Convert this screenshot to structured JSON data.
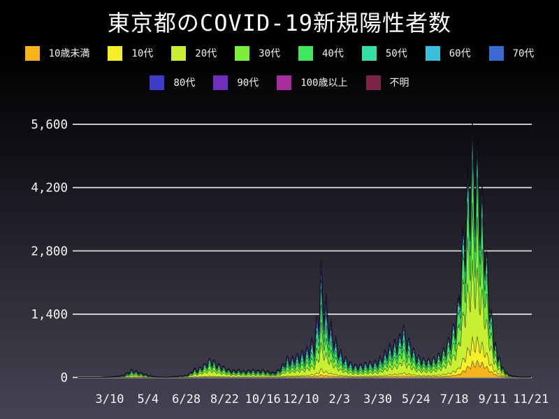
{
  "title": "東京都のCOVID-19新規陽性者数",
  "legend": {
    "rows": [
      [
        {
          "label": "10歳未満",
          "color": "#f7b41a"
        },
        {
          "label": "10代",
          "color": "#f7ef25"
        },
        {
          "label": "20代",
          "color": "#c9ef33"
        },
        {
          "label": "30代",
          "color": "#7bee3c"
        },
        {
          "label": "40代",
          "color": "#40e75c"
        },
        {
          "label": "50代",
          "color": "#35dfa5"
        },
        {
          "label": "60代",
          "color": "#39bedd"
        },
        {
          "label": "70代",
          "color": "#3a6bd2"
        }
      ],
      [
        {
          "label": "80代",
          "color": "#3e3bc6"
        },
        {
          "label": "90代",
          "color": "#6e2fbc"
        },
        {
          "label": "100歳以上",
          "color": "#a72d9e"
        },
        {
          "label": "不明",
          "color": "#7c2348"
        }
      ]
    ]
  },
  "chart_data": {
    "type": "area",
    "stacked": true,
    "title": "東京都のCOVID-19新規陽性者数",
    "xlabel": "",
    "ylabel": "",
    "grid": true,
    "legend_position": "top",
    "background_gradient": [
      "#000000",
      "#15131a",
      "#312e3a",
      "#474353"
    ],
    "grid_color": "#ededed",
    "text_color": "#f5f5f5",
    "ylim": [
      0,
      5950
    ],
    "y_ticks": [
      0,
      1400,
      2800,
      4200,
      5600
    ],
    "y_tick_labels": [
      "0",
      "1,400",
      "2,800",
      "4,200",
      "5,600"
    ],
    "x_tick_labels": [
      "3/10",
      "5/4",
      "6/28",
      "8/22",
      "10/16",
      "12/10",
      "2/3",
      "3/30",
      "5/24",
      "7/18",
      "9/11",
      "11/21"
    ],
    "x_tick_days": [
      46,
      101,
      156,
      211,
      266,
      321,
      376,
      431,
      486,
      541,
      596,
      667
    ],
    "x_unit": "day index, daily data spanning early 2020 to 11/21 of the following year",
    "series": [
      {
        "name": "10歳未満",
        "color": "#f7b41a"
      },
      {
        "name": "10代",
        "color": "#f7ef25"
      },
      {
        "name": "20代",
        "color": "#c9ef33"
      },
      {
        "name": "30代",
        "color": "#7bee3c"
      },
      {
        "name": "40代",
        "color": "#40e75c"
      },
      {
        "name": "50代",
        "color": "#35dfa5"
      },
      {
        "name": "60代",
        "color": "#39bedd"
      },
      {
        "name": "70代",
        "color": "#3a6bd2"
      },
      {
        "name": "80代",
        "color": "#3e3bc6"
      },
      {
        "name": "90代",
        "color": "#6e2fbc"
      },
      {
        "name": "100歳以上",
        "color": "#a72d9e"
      },
      {
        "name": "不明",
        "color": "#7c2348"
      }
    ],
    "daily_total_envelope": [
      [
        0,
        1
      ],
      [
        14,
        1
      ],
      [
        31,
        3
      ],
      [
        40,
        8
      ],
      [
        46,
        16
      ],
      [
        54,
        30
      ],
      [
        61,
        45
      ],
      [
        68,
        80
      ],
      [
        74,
        150
      ],
      [
        78,
        195
      ],
      [
        83,
        165
      ],
      [
        88,
        135
      ],
      [
        92,
        115
      ],
      [
        97,
        85
      ],
      [
        101,
        62
      ],
      [
        106,
        40
      ],
      [
        112,
        25
      ],
      [
        118,
        14
      ],
      [
        124,
        10
      ],
      [
        131,
        15
      ],
      [
        138,
        27
      ],
      [
        145,
        40
      ],
      [
        152,
        50
      ],
      [
        156,
        58
      ],
      [
        160,
        90
      ],
      [
        164,
        160
      ],
      [
        168,
        225
      ],
      [
        172,
        185
      ],
      [
        175,
        245
      ],
      [
        179,
        285
      ],
      [
        183,
        335
      ],
      [
        187,
        405
      ],
      [
        190,
        465
      ],
      [
        194,
        425
      ],
      [
        198,
        375
      ],
      [
        203,
        315
      ],
      [
        207,
        285
      ],
      [
        211,
        258
      ],
      [
        216,
        205
      ],
      [
        221,
        185
      ],
      [
        226,
        178
      ],
      [
        231,
        198
      ],
      [
        236,
        172
      ],
      [
        241,
        162
      ],
      [
        246,
        178
      ],
      [
        251,
        198
      ],
      [
        256,
        182
      ],
      [
        261,
        172
      ],
      [
        266,
        188
      ],
      [
        271,
        162
      ],
      [
        276,
        142
      ],
      [
        281,
        128
      ],
      [
        286,
        165
      ],
      [
        291,
        235
      ],
      [
        296,
        355
      ],
      [
        301,
        505
      ],
      [
        306,
        455
      ],
      [
        311,
        515
      ],
      [
        316,
        555
      ],
      [
        321,
        605
      ],
      [
        326,
        655
      ],
      [
        331,
        755
      ],
      [
        336,
        895
      ],
      [
        340,
        960
      ],
      [
        343,
        1360
      ],
      [
        346,
        1620
      ],
      [
        349,
        2740
      ],
      [
        352,
        2150
      ],
      [
        356,
        1870
      ],
      [
        360,
        1560
      ],
      [
        364,
        1260
      ],
      [
        368,
        1060
      ],
      [
        372,
        870
      ],
      [
        376,
        695
      ],
      [
        380,
        565
      ],
      [
        384,
        495
      ],
      [
        388,
        425
      ],
      [
        392,
        365
      ],
      [
        396,
        325
      ],
      [
        400,
        305
      ],
      [
        404,
        300
      ],
      [
        408,
        325
      ],
      [
        412,
        348
      ],
      [
        416,
        358
      ],
      [
        420,
        372
      ],
      [
        424,
        385
      ],
      [
        428,
        398
      ],
      [
        431,
        415
      ],
      [
        435,
        485
      ],
      [
        439,
        565
      ],
      [
        443,
        645
      ],
      [
        447,
        745
      ],
      [
        451,
        805
      ],
      [
        455,
        855
      ],
      [
        459,
        925
      ],
      [
        463,
        1005
      ],
      [
        467,
        1340
      ],
      [
        471,
        1010
      ],
      [
        475,
        925
      ],
      [
        479,
        805
      ],
      [
        483,
        665
      ],
      [
        486,
        565
      ],
      [
        490,
        505
      ],
      [
        494,
        465
      ],
      [
        498,
        445
      ],
      [
        502,
        438
      ],
      [
        506,
        432
      ],
      [
        510,
        455
      ],
      [
        514,
        485
      ],
      [
        518,
        548
      ],
      [
        522,
        605
      ],
      [
        526,
        685
      ],
      [
        530,
        835
      ],
      [
        534,
        955
      ],
      [
        538,
        1155
      ],
      [
        541,
        1315
      ],
      [
        544,
        1560
      ],
      [
        547,
        1860
      ],
      [
        550,
        2620
      ],
      [
        553,
        3320
      ],
      [
        556,
        3870
      ],
      [
        559,
        4520
      ],
      [
        562,
        4920
      ],
      [
        565,
        5330
      ],
      [
        567,
        5750
      ],
      [
        569,
        5520
      ],
      [
        571,
        5260
      ],
      [
        573,
        5420
      ],
      [
        575,
        5160
      ],
      [
        577,
        4820
      ],
      [
        579,
        4520
      ],
      [
        581,
        4260
      ],
      [
        583,
        3920
      ],
      [
        585,
        3560
      ],
      [
        587,
        3020
      ],
      [
        589,
        2520
      ],
      [
        591,
        2160
      ],
      [
        593,
        1810
      ],
      [
        596,
        1260
      ],
      [
        599,
        985
      ],
      [
        602,
        785
      ],
      [
        605,
        605
      ],
      [
        608,
        485
      ],
      [
        611,
        385
      ],
      [
        614,
        272
      ],
      [
        617,
        202
      ],
      [
        620,
        146
      ],
      [
        623,
        106
      ],
      [
        626,
        76
      ],
      [
        629,
        56
      ],
      [
        632,
        43
      ],
      [
        635,
        35
      ],
      [
        638,
        28
      ],
      [
        641,
        23
      ],
      [
        644,
        19
      ],
      [
        647,
        16
      ],
      [
        650,
        14
      ],
      [
        654,
        12
      ],
      [
        658,
        12
      ],
      [
        662,
        14
      ],
      [
        667,
        22
      ]
    ],
    "weekday_pattern": [
      1.0,
      0.94,
      0.85,
      0.68,
      0.63,
      0.79,
      0.93
    ],
    "age_share_keyframes": [
      {
        "day": 0,
        "shares": [
          0.01,
          0.02,
          0.17,
          0.18,
          0.17,
          0.14,
          0.09,
          0.09,
          0.08,
          0.03,
          0.002,
          0.018
        ]
      },
      {
        "day": 180,
        "shares": [
          0.02,
          0.04,
          0.33,
          0.23,
          0.14,
          0.09,
          0.05,
          0.04,
          0.03,
          0.015,
          0.002,
          0.013
        ]
      },
      {
        "day": 280,
        "shares": [
          0.025,
          0.045,
          0.25,
          0.19,
          0.15,
          0.12,
          0.075,
          0.065,
          0.05,
          0.02,
          0.002,
          0.008
        ]
      },
      {
        "day": 350,
        "shares": [
          0.025,
          0.05,
          0.22,
          0.17,
          0.15,
          0.13,
          0.08,
          0.07,
          0.06,
          0.03,
          0.003,
          0.012
        ]
      },
      {
        "day": 470,
        "shares": [
          0.03,
          0.06,
          0.24,
          0.2,
          0.17,
          0.13,
          0.07,
          0.05,
          0.03,
          0.013,
          0.002,
          0.005
        ]
      },
      {
        "day": 550,
        "shares": [
          0.04,
          0.08,
          0.31,
          0.22,
          0.17,
          0.1,
          0.04,
          0.02,
          0.01,
          0.004,
          0.001,
          0.005
        ]
      },
      {
        "day": 590,
        "shares": [
          0.09,
          0.11,
          0.26,
          0.2,
          0.16,
          0.1,
          0.04,
          0.02,
          0.01,
          0.004,
          0.001,
          0.005
        ]
      },
      {
        "day": 667,
        "shares": [
          0.07,
          0.1,
          0.23,
          0.2,
          0.16,
          0.11,
          0.06,
          0.03,
          0.02,
          0.008,
          0.001,
          0.011
        ]
      }
    ],
    "notable_peaks": [
      {
        "x_label_near": "12/10–2/3",
        "value": 2520
      },
      {
        "x_label_near": "5/24",
        "value": 1050
      },
      {
        "x_label_near": "7/18–9/11",
        "value": 5770
      }
    ]
  }
}
